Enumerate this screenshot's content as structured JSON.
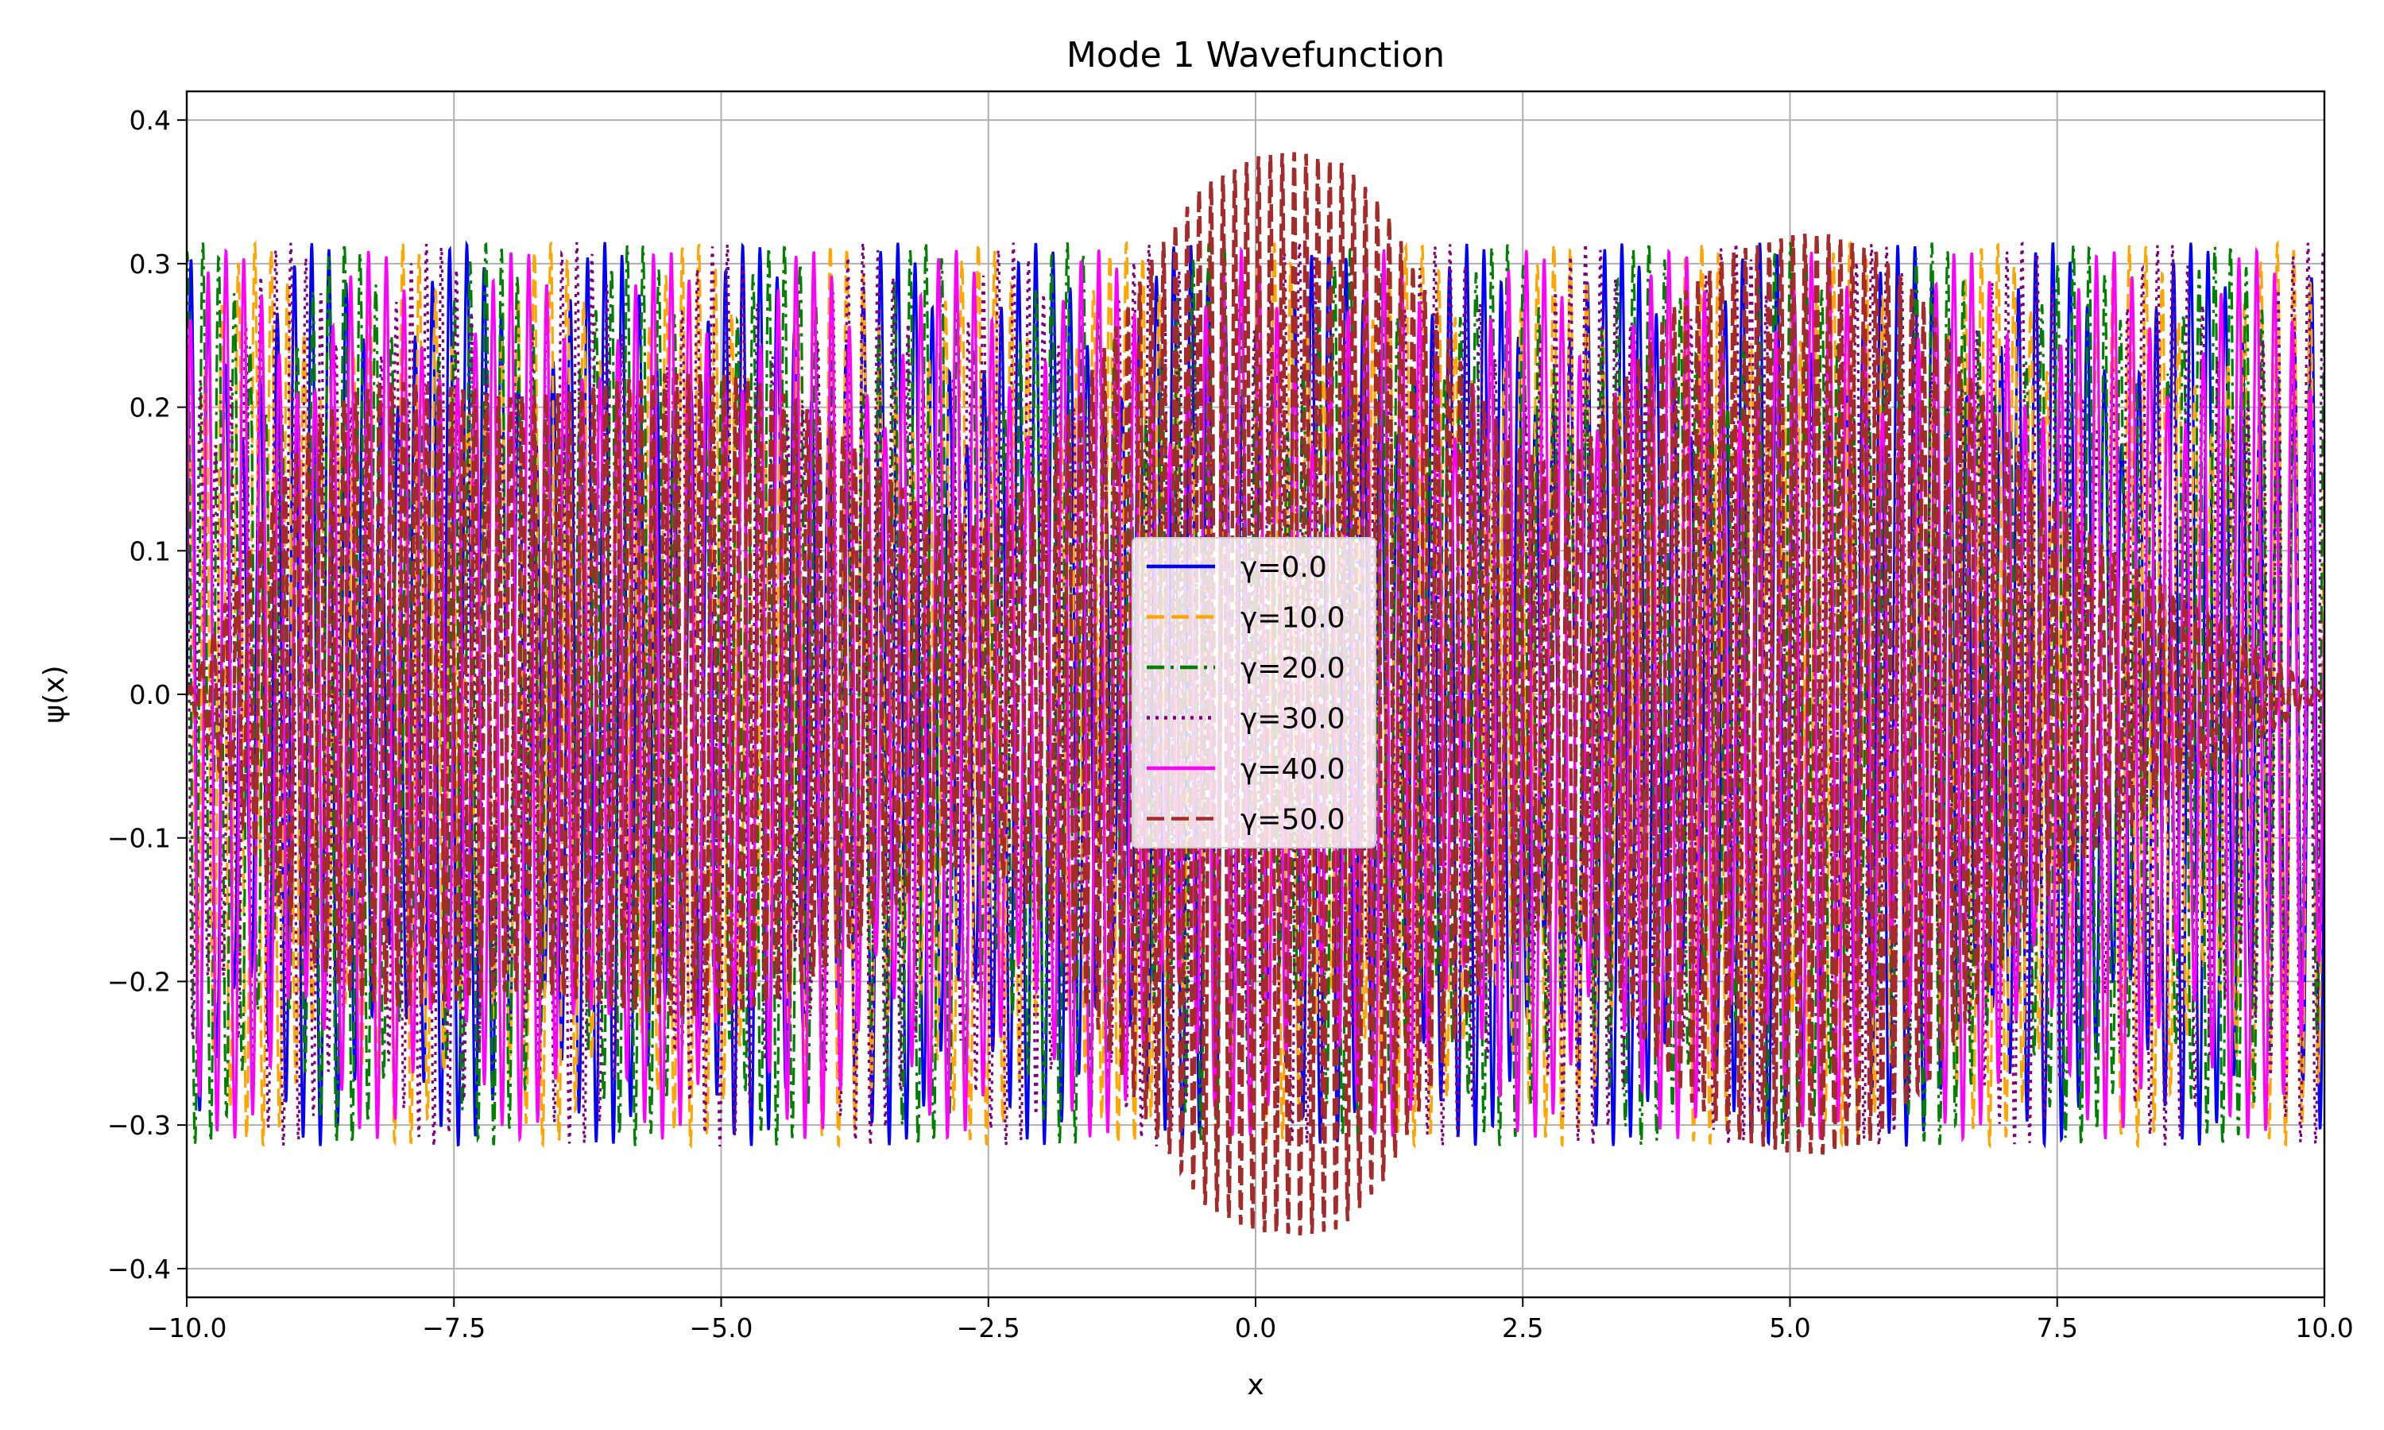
{
  "chart_data": {
    "type": "line",
    "title": "Mode 1 Wavefunction",
    "xlabel": "x",
    "ylabel": "ψ(x)",
    "xlim": [
      -10.0,
      10.0
    ],
    "ylim": [
      -0.42,
      0.42
    ],
    "xticks": [
      -10.0,
      -7.5,
      -5.0,
      -2.5,
      0.0,
      2.5,
      5.0,
      7.5,
      10.0
    ],
    "xtick_labels": [
      "−10.0",
      "−7.5",
      "−5.0",
      "−2.5",
      "0.0",
      "2.5",
      "5.0",
      "7.5",
      "10.0"
    ],
    "yticks": [
      -0.4,
      -0.3,
      -0.2,
      -0.1,
      0.0,
      0.1,
      0.2,
      0.3,
      0.4
    ],
    "ytick_labels": [
      "−0.4",
      "−0.3",
      "−0.2",
      "−0.1",
      "0.0",
      "0.1",
      "0.2",
      "0.3",
      "0.4"
    ],
    "grid": true,
    "legend_position": "center",
    "series": [
      {
        "name": "γ=0.0",
        "color": "#0000ff",
        "linestyle": "solid",
        "amplitude": 0.315,
        "cycles_per_unit": 6.2,
        "phase": 0.0
      },
      {
        "name": "γ=10.0",
        "color": "#ffa500",
        "linestyle": "dashed",
        "amplitude": 0.315,
        "cycles_per_unit": 6.5,
        "phase": 0.7
      },
      {
        "name": "γ=20.0",
        "color": "#008000",
        "linestyle": "dashdot",
        "amplitude": 0.315,
        "cycles_per_unit": 6.8,
        "phase": 1.4
      },
      {
        "name": "γ=30.0",
        "color": "#800080",
        "linestyle": "dotted",
        "amplitude": 0.315,
        "cycles_per_unit": 7.1,
        "phase": 2.1
      },
      {
        "name": "γ=40.0",
        "color": "#ff00ff",
        "linestyle": "solid",
        "amplitude": 0.31,
        "cycles_per_unit": 6.0,
        "phase": 0.3,
        "envelope_min": [
          [
            -10.0,
            0.0
          ],
          [
            -9.8,
            0.14
          ],
          [
            -9.5,
            0.17
          ],
          [
            -9.0,
            0.19
          ],
          [
            -8.0,
            0.2
          ],
          [
            -5.0,
            0.2
          ],
          [
            -3.0,
            0.12
          ],
          [
            -2.6,
            0.12
          ],
          [
            10.0,
            0.15
          ]
        ]
      },
      {
        "name": "γ=50.0",
        "color": "#a52a2a",
        "linestyle": "dashed",
        "cycles_per_unit": 9.0,
        "phase": 0.0,
        "envelope": [
          [
            -10.0,
            0.0
          ],
          [
            -9.6,
            0.07
          ],
          [
            -9.2,
            0.14
          ],
          [
            -8.8,
            0.19
          ],
          [
            -8.4,
            0.212
          ],
          [
            -8.0,
            0.218
          ],
          [
            -7.5,
            0.214
          ],
          [
            -7.0,
            0.207
          ],
          [
            -6.5,
            0.21
          ],
          [
            -6.0,
            0.218
          ],
          [
            -5.5,
            0.224
          ],
          [
            -5.0,
            0.224
          ],
          [
            -4.5,
            0.214
          ],
          [
            -4.0,
            0.19
          ],
          [
            -3.5,
            0.155
          ],
          [
            -3.0,
            0.125
          ],
          [
            -2.7,
            0.118
          ],
          [
            -2.3,
            0.13
          ],
          [
            -2.0,
            0.16
          ],
          [
            -1.5,
            0.23
          ],
          [
            -1.0,
            0.3
          ],
          [
            -0.5,
            0.355
          ],
          [
            0.0,
            0.375
          ],
          [
            0.4,
            0.378
          ],
          [
            0.8,
            0.372
          ],
          [
            1.2,
            0.34
          ],
          [
            1.6,
            0.28
          ],
          [
            2.0,
            0.22
          ],
          [
            2.4,
            0.175
          ],
          [
            2.75,
            0.16
          ],
          [
            3.1,
            0.175
          ],
          [
            3.5,
            0.225
          ],
          [
            4.0,
            0.28
          ],
          [
            4.5,
            0.31
          ],
          [
            5.0,
            0.32
          ],
          [
            5.3,
            0.322
          ],
          [
            5.8,
            0.31
          ],
          [
            6.3,
            0.27
          ],
          [
            6.8,
            0.21
          ],
          [
            7.3,
            0.15
          ],
          [
            7.8,
            0.11
          ],
          [
            8.5,
            0.075
          ],
          [
            9.2,
            0.04
          ],
          [
            9.7,
            0.015
          ],
          [
            10.0,
            0.0
          ]
        ]
      }
    ]
  }
}
